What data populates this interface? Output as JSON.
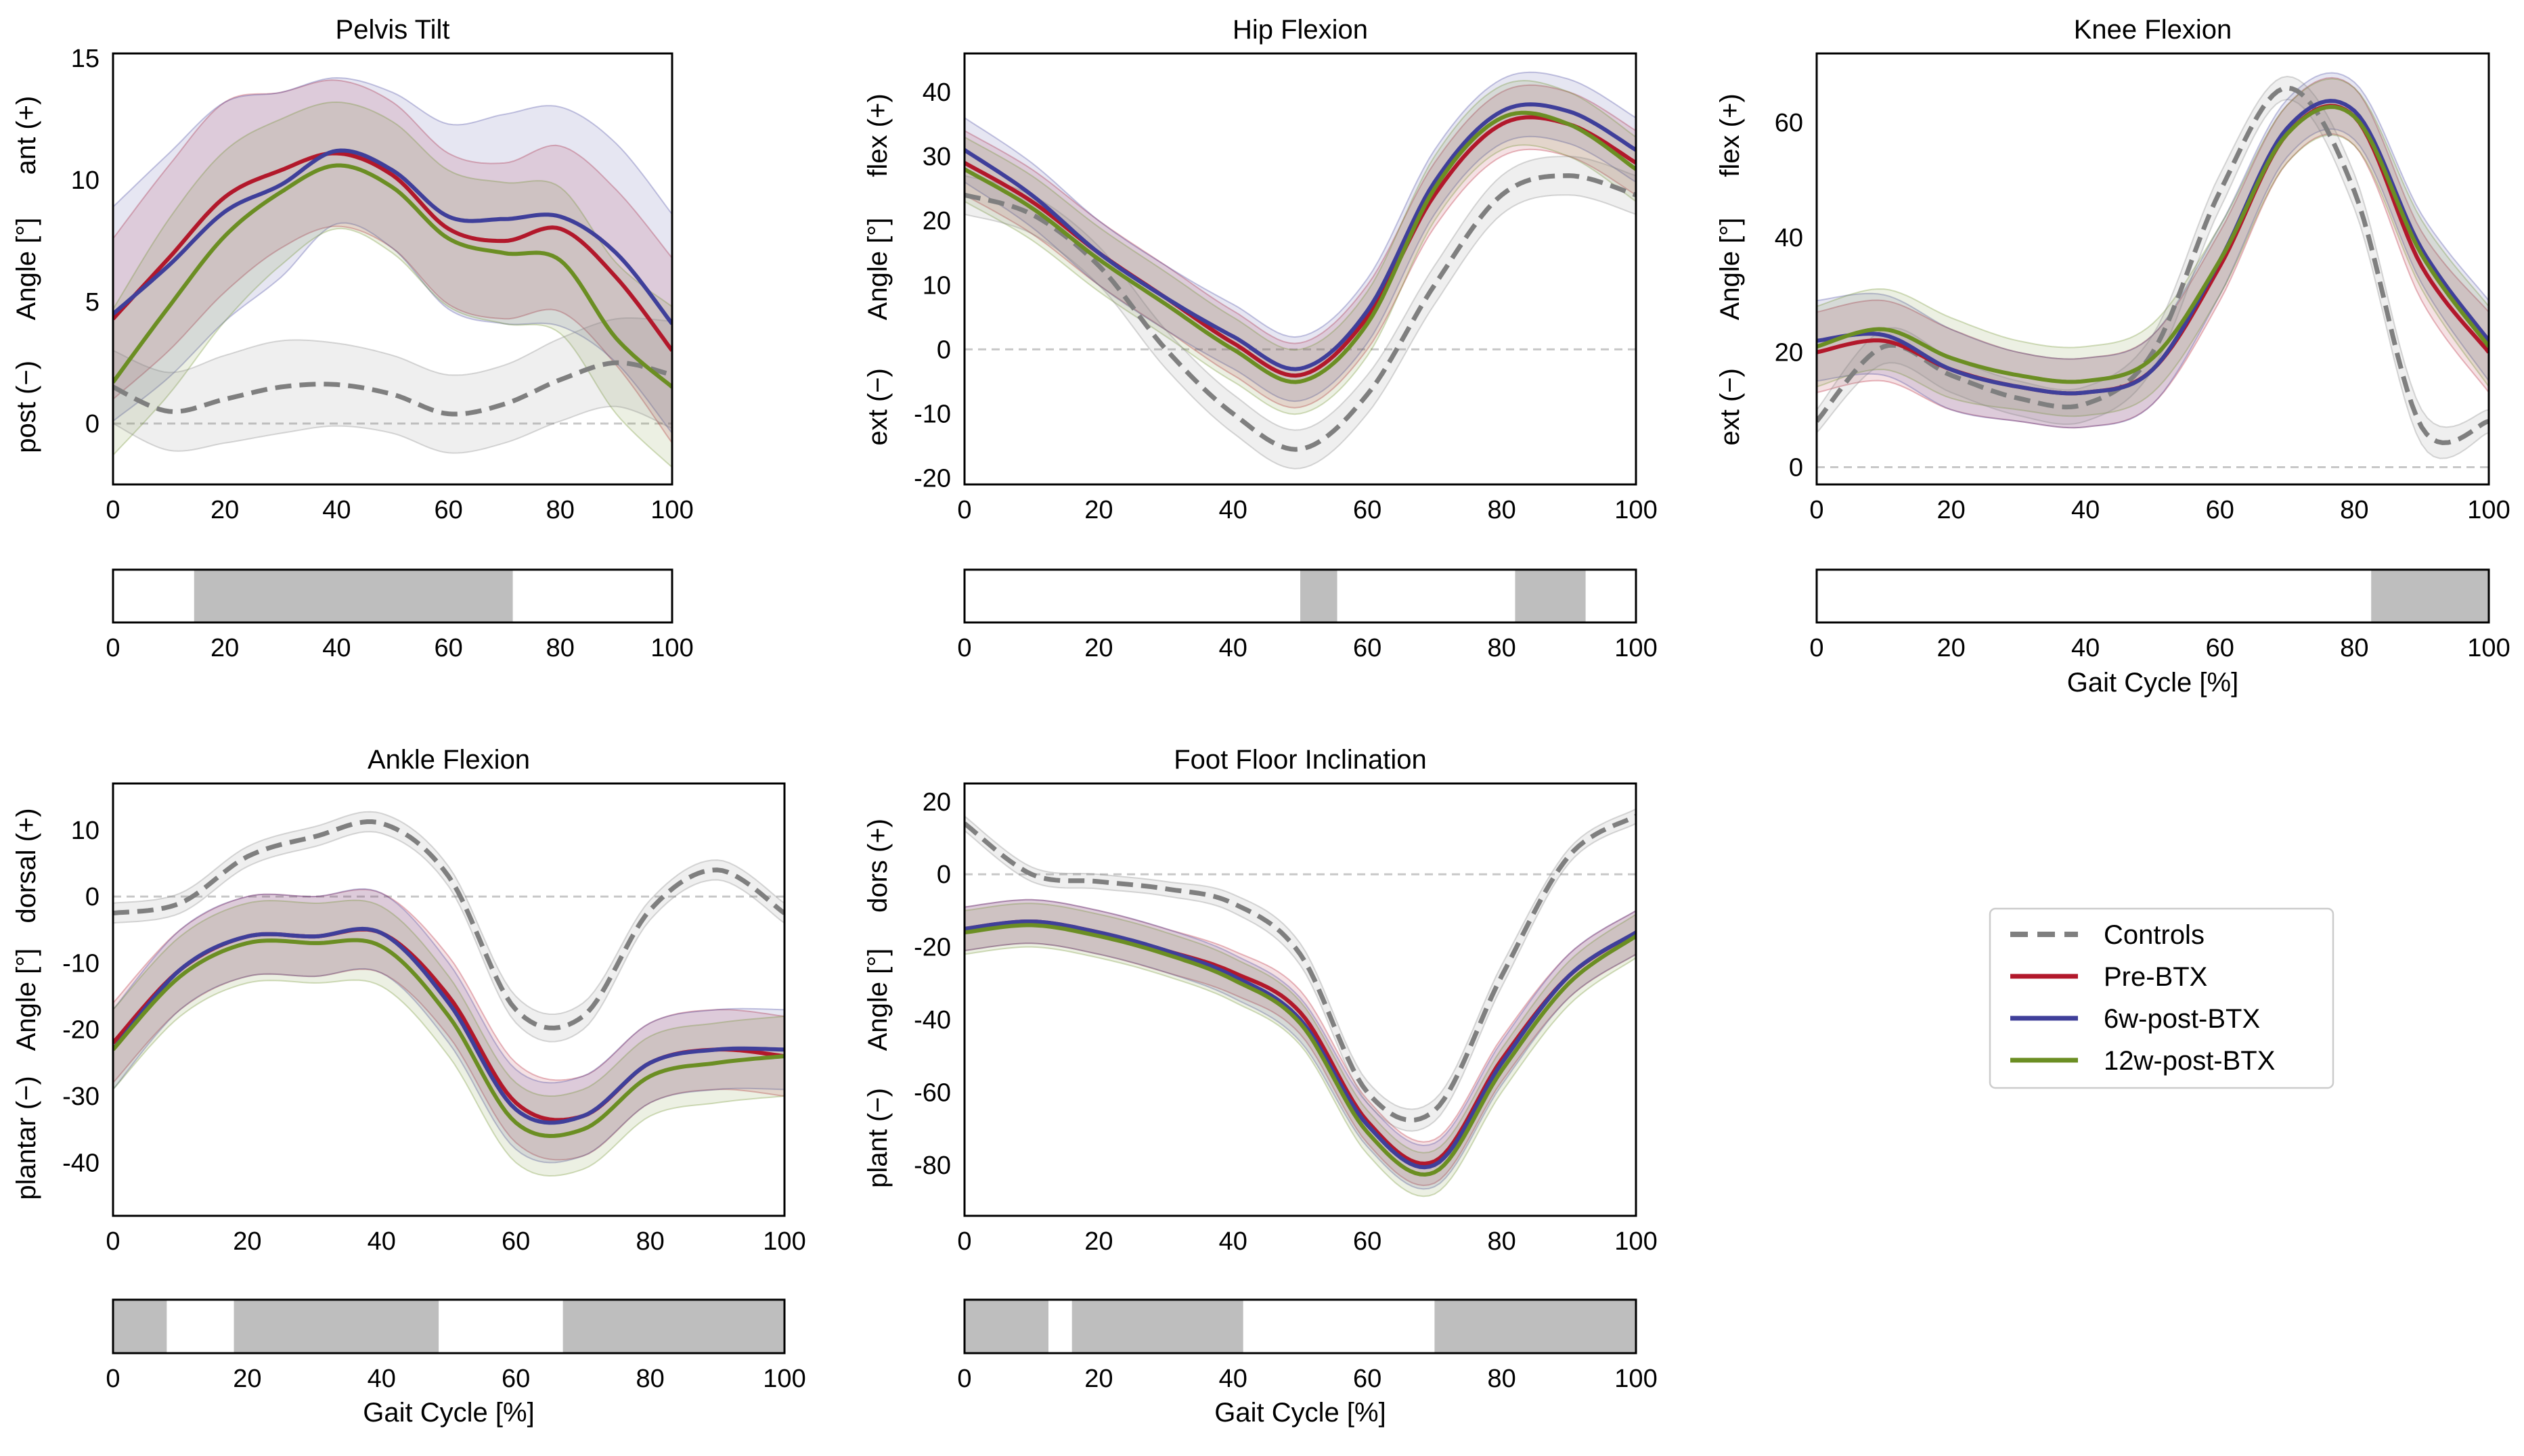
{
  "figure": {
    "colors": {
      "Controls": "#7f7f7f",
      "Pre-BTX": "#b2182b",
      "6w-post-BTX": "#3f3f9a",
      "12w-post-BTX": "#6b8e23",
      "significance": "#bebebe",
      "zero_line": "#c8c8c8"
    },
    "legend": {
      "entries": [
        "Controls",
        "Pre-BTX",
        "6w-post-BTX",
        "12w-post-BTX"
      ]
    }
  },
  "chart_data": [
    {
      "id": "pelvis",
      "type": "line",
      "title": "Pelvis Tilt",
      "ylabel": "Angle [°]",
      "ylabel_pos": "ant (+)",
      "ylabel_neg": "post (−)",
      "xlabel": "",
      "xlim": [
        0,
        100
      ],
      "ylim": [
        -2.5,
        15.2
      ],
      "xticks": [
        0,
        20,
        40,
        60,
        80,
        100
      ],
      "yticks": [
        0,
        5,
        10,
        15
      ],
      "x": [
        0,
        10,
        20,
        30,
        40,
        50,
        60,
        70,
        80,
        90,
        100
      ],
      "series": [
        {
          "name": "Controls",
          "values": [
            1.5,
            0.5,
            1.0,
            1.5,
            1.6,
            1.2,
            0.4,
            0.8,
            1.8,
            2.5,
            2.0
          ],
          "sd": [
            1.5,
            1.6,
            1.8,
            1.9,
            1.7,
            1.6,
            1.6,
            1.6,
            1.7,
            1.8,
            2.2
          ],
          "dashed": true
        },
        {
          "name": "Pre-BTX",
          "values": [
            4.3,
            6.8,
            9.3,
            10.4,
            11.1,
            10.2,
            8.0,
            7.5,
            8.0,
            6.0,
            3.0
          ],
          "sd": [
            3.3,
            3.8,
            3.9,
            3.2,
            3.0,
            3.0,
            3.1,
            3.2,
            3.4,
            3.6,
            3.8
          ]
        },
        {
          "name": "6w-post-BTX",
          "values": [
            4.5,
            6.5,
            8.7,
            9.8,
            11.2,
            10.4,
            8.5,
            8.4,
            8.5,
            7.0,
            4.1
          ],
          "sd": [
            4.4,
            4.6,
            4.5,
            3.8,
            3.0,
            3.2,
            3.8,
            4.3,
            4.5,
            4.5,
            4.5
          ]
        },
        {
          "name": "12w-post-BTX",
          "values": [
            1.7,
            4.8,
            7.7,
            9.5,
            10.6,
            9.7,
            7.6,
            7.0,
            6.7,
            3.5,
            1.5
          ],
          "sd": [
            3.0,
            3.6,
            3.5,
            3.0,
            2.6,
            2.7,
            2.8,
            2.9,
            3.0,
            3.1,
            3.3
          ]
        }
      ],
      "significance": [
        [
          14.5,
          71.5
        ]
      ]
    },
    {
      "id": "hip",
      "type": "line",
      "title": "Hip Flexion",
      "ylabel": "Angle [°]",
      "ylabel_pos": "flex (+)",
      "ylabel_neg": "ext (−)",
      "xlabel": "",
      "xlim": [
        0,
        100
      ],
      "ylim": [
        -21,
        46
      ],
      "xticks": [
        0,
        20,
        40,
        60,
        80,
        100
      ],
      "yticks": [
        -20,
        -10,
        0,
        10,
        20,
        30,
        40
      ],
      "x": [
        0,
        10,
        20,
        30,
        40,
        50,
        60,
        70,
        80,
        90,
        100
      ],
      "series": [
        {
          "name": "Controls",
          "values": [
            24,
            21,
            13,
            0,
            -10,
            -15.5,
            -7,
            10,
            24,
            27,
            24
          ],
          "sd": [
            3,
            3,
            3,
            3,
            3,
            3,
            3,
            3,
            3,
            3,
            3
          ],
          "dashed": true
        },
        {
          "name": "Pre-BTX",
          "values": [
            29,
            23,
            15,
            8,
            1,
            -4,
            5,
            24,
            35,
            35,
            29
          ],
          "sd": [
            5,
            5,
            5,
            5,
            5,
            5,
            5,
            5,
            5,
            5,
            5
          ]
        },
        {
          "name": "6w-post-BTX",
          "values": [
            31,
            24,
            15,
            8,
            2,
            -3,
            6,
            26,
            37,
            37,
            31
          ],
          "sd": [
            5,
            5,
            5,
            5,
            5,
            5,
            5,
            5,
            5,
            5,
            5
          ]
        },
        {
          "name": "12w-post-BTX",
          "values": [
            28,
            22,
            14,
            7,
            0,
            -5,
            4,
            25,
            36,
            35,
            28
          ],
          "sd": [
            5,
            5,
            5,
            5,
            5,
            5,
            5,
            5,
            5,
            5,
            5
          ]
        }
      ],
      "significance": [
        [
          50,
          55.5
        ],
        [
          82,
          92.5
        ]
      ]
    },
    {
      "id": "knee",
      "type": "line",
      "title": "Knee Flexion",
      "ylabel": "Angle [°]",
      "ylabel_pos": "flex (+)",
      "ylabel_neg": "ext (−)",
      "xlabel": "Gait Cycle [%]",
      "xlim": [
        0,
        100
      ],
      "ylim": [
        -3,
        72
      ],
      "xticks": [
        0,
        20,
        40,
        60,
        80,
        100
      ],
      "yticks": [
        0,
        20,
        40,
        60
      ],
      "x": [
        0,
        10,
        20,
        30,
        40,
        50,
        60,
        70,
        80,
        90,
        100
      ],
      "series": [
        {
          "name": "Controls",
          "values": [
            8,
            21,
            16,
            12,
            11,
            20,
            48,
            66,
            48,
            7,
            8
          ],
          "sd": [
            2,
            3,
            3,
            3,
            3,
            3,
            3,
            2,
            3,
            3,
            2
          ],
          "dashed": true
        },
        {
          "name": "Pre-BTX",
          "values": [
            20,
            22,
            17,
            14,
            13,
            17,
            35,
            58,
            61,
            35,
            20
          ],
          "sd": [
            7,
            7,
            7,
            6,
            6,
            6,
            6,
            5,
            5,
            6,
            7
          ]
        },
        {
          "name": "6w-post-BTX",
          "values": [
            22,
            23,
            17,
            14,
            13,
            17,
            36,
            59,
            62,
            38,
            22
          ],
          "sd": [
            7,
            7,
            7,
            6,
            6,
            6,
            6,
            5,
            5,
            6,
            7
          ]
        },
        {
          "name": "12w-post-BTX",
          "values": [
            21,
            24,
            19,
            16,
            15,
            19,
            36,
            58,
            61,
            37,
            21
          ],
          "sd": [
            7,
            7,
            7,
            6,
            6,
            6,
            6,
            5,
            5,
            6,
            7
          ]
        }
      ],
      "significance": [
        [
          82.5,
          100
        ]
      ]
    },
    {
      "id": "ankle",
      "type": "line",
      "title": "Ankle Flexion",
      "ylabel": "Angle [°]",
      "ylabel_pos": "dorsal (+)",
      "ylabel_neg": "plantar (−)",
      "xlabel": "Gait Cycle [%]",
      "xlim": [
        0,
        100
      ],
      "ylim": [
        -48,
        17
      ],
      "xticks": [
        0,
        20,
        40,
        60,
        80,
        100
      ],
      "yticks": [
        -40,
        -30,
        -20,
        -10,
        0,
        10
      ],
      "x": [
        0,
        10,
        20,
        30,
        40,
        50,
        60,
        70,
        80,
        90,
        100
      ],
      "series": [
        {
          "name": "Controls",
          "values": [
            -2.5,
            -1,
            6,
            9,
            11,
            3,
            -17,
            -18,
            -2,
            4,
            -2.5
          ],
          "sd": [
            1.5,
            1.5,
            1.5,
            1.5,
            1.5,
            1.5,
            2,
            2,
            1.5,
            1.5,
            1.5
          ],
          "dashed": true
        },
        {
          "name": "Pre-BTX",
          "values": [
            -22,
            -11,
            -6,
            -6,
            -5.5,
            -15,
            -31,
            -33,
            -25,
            -23,
            -24
          ],
          "sd": [
            6,
            6,
            6,
            6,
            6,
            6,
            6,
            6,
            6,
            6,
            6
          ]
        },
        {
          "name": "6w-post-BTX",
          "values": [
            -23,
            -11,
            -6,
            -6,
            -5.5,
            -16,
            -32,
            -33,
            -25,
            -23,
            -23
          ],
          "sd": [
            6,
            6,
            6,
            6,
            6,
            6,
            6,
            6,
            6,
            6,
            6
          ]
        },
        {
          "name": "12w-post-BTX",
          "values": [
            -23,
            -12,
            -7,
            -7,
            -7.5,
            -18,
            -34,
            -35,
            -27,
            -25,
            -24
          ],
          "sd": [
            6,
            6,
            6,
            6,
            6,
            6,
            6,
            6,
            6,
            6,
            6
          ]
        }
      ],
      "significance": [
        [
          0,
          8
        ],
        [
          18,
          48.5
        ],
        [
          67,
          100
        ]
      ]
    },
    {
      "id": "foot",
      "type": "line",
      "title": "Foot Floor Inclination",
      "ylabel": "Angle [°]",
      "ylabel_pos": "dors (+)",
      "ylabel_neg": "plant (−)",
      "xlabel": "Gait Cycle [%]",
      "xlim": [
        0,
        100
      ],
      "ylim": [
        -94,
        25
      ],
      "xticks": [
        0,
        20,
        40,
        60,
        80,
        100
      ],
      "yticks": [
        -80,
        -60,
        -40,
        -20,
        0,
        20
      ],
      "x": [
        0,
        10,
        20,
        30,
        40,
        50,
        60,
        70,
        80,
        90,
        100
      ],
      "series": [
        {
          "name": "Controls",
          "values": [
            14,
            0,
            -2,
            -4,
            -8,
            -22,
            -60,
            -65,
            -28,
            5,
            16
          ],
          "sd": [
            2,
            2,
            2,
            2,
            2.5,
            3,
            3,
            3,
            3,
            2,
            2
          ],
          "dashed": true
        },
        {
          "name": "Pre-BTX",
          "values": [
            -15,
            -13,
            -16,
            -21,
            -27,
            -38,
            -68,
            -79,
            -51,
            -28,
            -16
          ],
          "sd": [
            6,
            6,
            6,
            6,
            6,
            6,
            6,
            6,
            6,
            6,
            6
          ]
        },
        {
          "name": "6w-post-BTX",
          "values": [
            -15,
            -13,
            -16,
            -21,
            -28,
            -40,
            -69,
            -80,
            -52,
            -28,
            -16
          ],
          "sd": [
            6,
            6,
            6,
            6,
            6,
            6,
            6,
            6,
            6,
            6,
            6
          ]
        },
        {
          "name": "12w-post-BTX",
          "values": [
            -16,
            -14,
            -17,
            -22,
            -29,
            -41,
            -71,
            -82,
            -54,
            -30,
            -17
          ],
          "sd": [
            6,
            6,
            6,
            6,
            6,
            6,
            6,
            6,
            6,
            6,
            6
          ]
        }
      ],
      "significance": [
        [
          0,
          12.5
        ],
        [
          16,
          41.5
        ],
        [
          70,
          100
        ]
      ]
    }
  ]
}
